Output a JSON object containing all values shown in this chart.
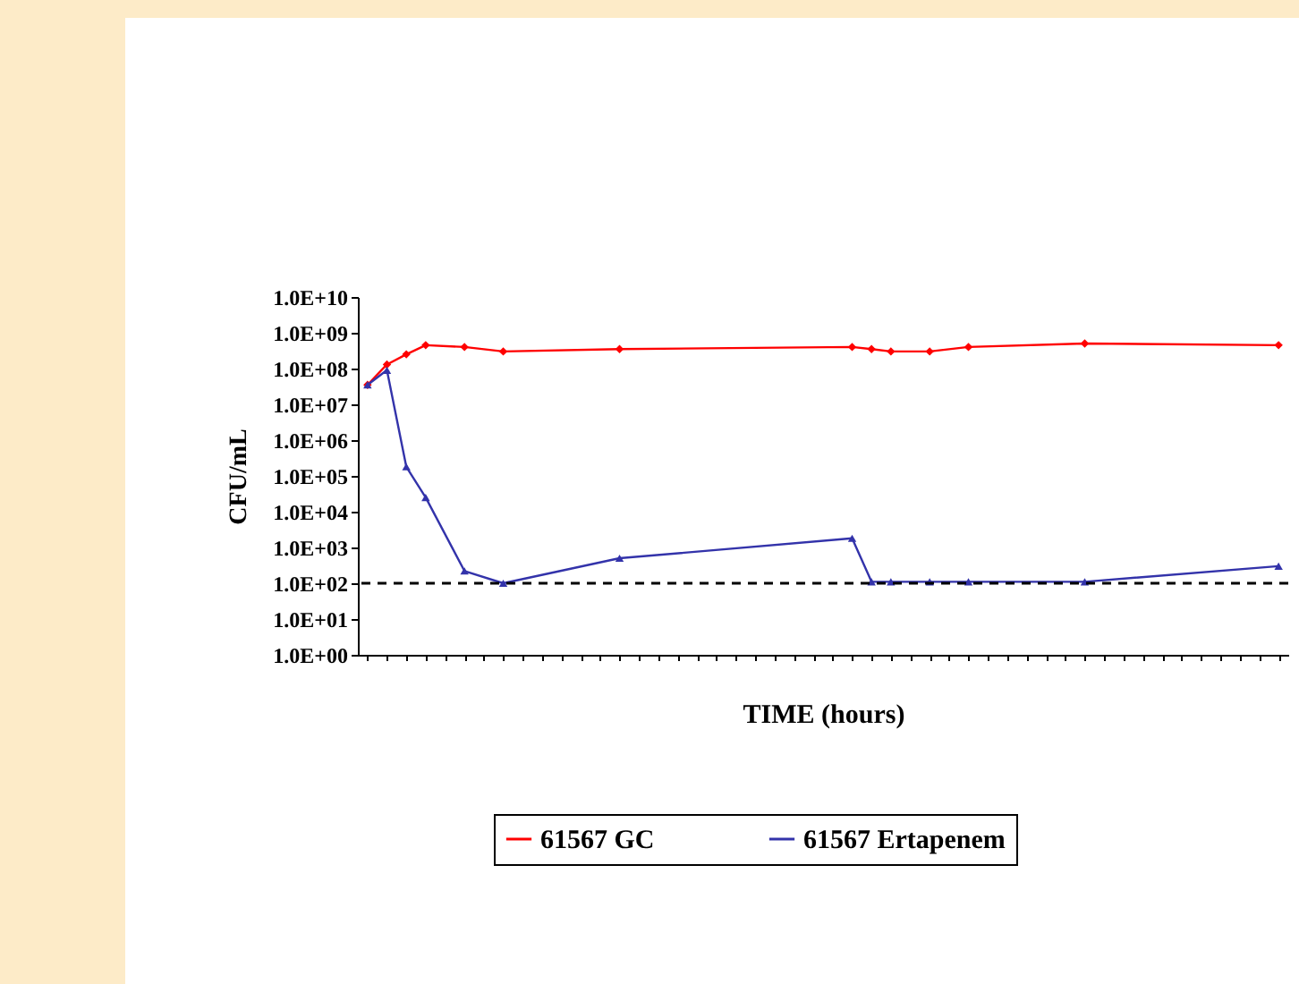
{
  "chart_data": {
    "type": "line",
    "xlabel": "TIME (hours)",
    "ylabel": "CFU/mL",
    "categories": [
      null,
      null,
      null,
      null,
      null,
      null,
      null,
      null,
      null,
      null,
      null,
      null,
      null,
      null,
      null,
      null,
      null,
      null,
      null,
      null,
      null,
      null,
      null,
      null,
      null,
      null,
      null,
      null,
      null,
      null,
      null,
      null,
      null,
      null,
      null,
      null,
      null,
      null,
      null,
      null,
      null,
      null,
      null,
      null,
      null,
      null,
      null,
      null
    ],
    "series": [
      {
        "name": "61567 GC",
        "color": "#ff0000",
        "marker": "diamond",
        "values": [
          35000000.0,
          130000000.0,
          250000000.0,
          450000000.0,
          null,
          400000000.0,
          null,
          300000000.0,
          null,
          null,
          null,
          null,
          null,
          350000000.0,
          null,
          null,
          null,
          null,
          null,
          null,
          null,
          null,
          null,
          null,
          null,
          400000000.0,
          350000000.0,
          300000000.0,
          null,
          300000000.0,
          null,
          400000000.0,
          null,
          null,
          null,
          null,
          null,
          500000000.0,
          null,
          null,
          null,
          null,
          null,
          null,
          null,
          null,
          null,
          450000000.0
        ]
      },
      {
        "name": "61567 Ertapenem",
        "color": "#3333aa",
        "marker": "triangle",
        "values": [
          35000000.0,
          90000000.0,
          180000.0,
          25000.0,
          null,
          220.0,
          null,
          100.0,
          null,
          null,
          null,
          null,
          null,
          500.0,
          null,
          null,
          null,
          null,
          null,
          null,
          null,
          null,
          null,
          null,
          null,
          1800.0,
          110.0,
          110.0,
          null,
          110.0,
          null,
          110.0,
          null,
          null,
          null,
          null,
          null,
          110.0,
          null,
          null,
          null,
          null,
          null,
          null,
          null,
          null,
          null,
          300.0
        ]
      }
    ],
    "log": true,
    "ylim": [
      1,
      10000000000.0
    ],
    "yticks": [
      {
        "value": 1,
        "label": "1.0E+00"
      },
      {
        "value": 10,
        "label": "1.0E+01"
      },
      {
        "value": 100,
        "label": "1.0E+02"
      },
      {
        "value": 1000,
        "label": "1.0E+03"
      },
      {
        "value": 10000,
        "label": "1.0E+04"
      },
      {
        "value": 100000,
        "label": "1.0E+05"
      },
      {
        "value": 1000000,
        "label": "1.0E+06"
      },
      {
        "value": 10000000,
        "label": "1.0E+07"
      },
      {
        "value": 100000000,
        "label": "1.0E+08"
      },
      {
        "value": 1000000000,
        "label": "1.0E+09"
      },
      {
        "value": 10000000000,
        "label": "1.0E+10"
      }
    ],
    "ref_lines": [
      {
        "axis": "y",
        "value": 100,
        "color": "#000000",
        "line_style": "dashed"
      }
    ],
    "grid": false,
    "legend": "bottom",
    "tick_labels": "y"
  }
}
